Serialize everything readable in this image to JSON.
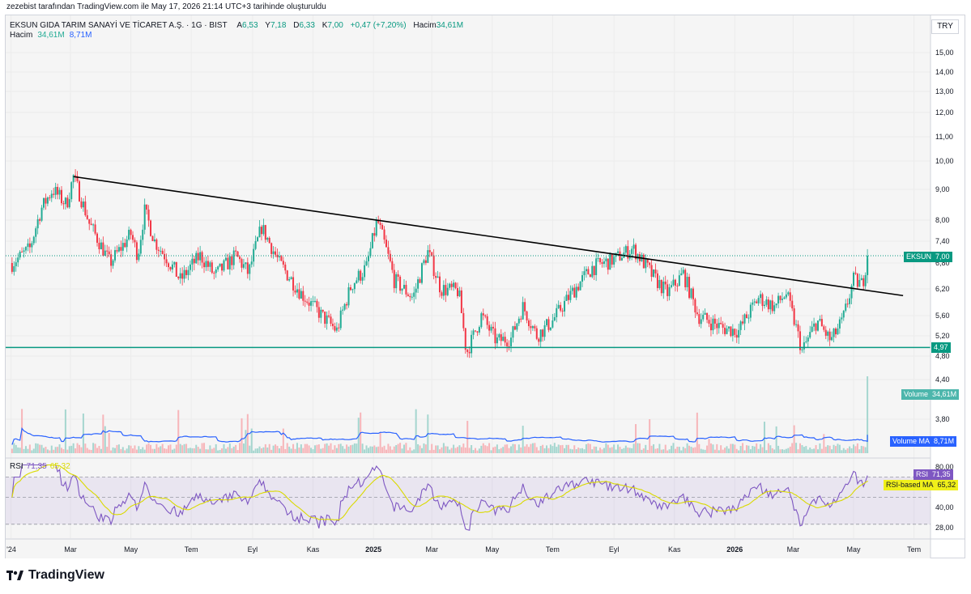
{
  "caption": "zezebist tarafından TradingView.com ile May 17, 2026 21:14 UTC+3 tarihinde oluşturuldu",
  "symbol_line": {
    "symbol": "EKSUN GIDA TARIM SANAYİ VE TİCARET A.Ş. · 1G · BIST",
    "open_label": "A",
    "open": "6,53",
    "high_label": "Y",
    "high": "7,18",
    "low_label": "D",
    "low": "6,33",
    "close_label": "K",
    "close": "7,00",
    "change": "+0,47 (+7,20%)",
    "volume_label": "Hacim",
    "volume": "34,61M"
  },
  "volume_legend": {
    "label": "Hacim",
    "value": "34,61M",
    "ma": "8,71M"
  },
  "rsi_legend": {
    "label": "RSI",
    "value": "71,35",
    "ma": "65,32"
  },
  "currency": "TRY",
  "tags": {
    "price": {
      "label": "EKSUN",
      "value": "7,00"
    },
    "support": "4,97",
    "volume": {
      "label": "Volume",
      "value": "34,61M"
    },
    "volume_ma": {
      "label": "Volume MA",
      "value": "8,71M"
    },
    "rsi": {
      "label": "RSI",
      "value": "71,35"
    },
    "rsi_ma": {
      "label": "RSI-based MA",
      "value": "65,32"
    }
  },
  "brand": "TradingView",
  "colors": {
    "up": "#22ab94",
    "down": "#f23645",
    "volume_up": "#a5d6cf",
    "volume_down": "#f7b5b9",
    "volume_ma": "#2962ff",
    "rsi": "#7e57c2",
    "rsi_ma": "#dada00",
    "support": "#089981",
    "trendline": "#000000"
  },
  "chart_data": {
    "type": "candlestick",
    "price_axis_ticks": [
      "15,00",
      "14,00",
      "13,00",
      "12,00",
      "11,00",
      "10,00",
      "9,00",
      "8,00",
      "7,40",
      "6,80",
      "6,20",
      "5,60",
      "5,20",
      "4,80",
      "4,40",
      "3,80"
    ],
    "price_axis_values": [
      15,
      14,
      13,
      12,
      11,
      10,
      9,
      8,
      7.4,
      6.8,
      6.2,
      5.6,
      5.2,
      4.8,
      4.4,
      3.8
    ],
    "rsi_axis_ticks": [
      "80,00",
      "40,00",
      "28,00"
    ],
    "time_axis_ticks": [
      "'24",
      "Mar",
      "May",
      "Tem",
      "Eyl",
      "Kas",
      "2025",
      "Mar",
      "May",
      "Tem",
      "Eyl",
      "Kas",
      "2026",
      "Mar",
      "May",
      "Tem"
    ],
    "time_axis_values": [
      "2024-01",
      "2024-03",
      "2024-05",
      "2024-07",
      "2024-09",
      "2024-11",
      "2025-01",
      "2025-03",
      "2025-05",
      "2025-07",
      "2025-09",
      "2025-11",
      "2026-01",
      "2026-03",
      "2026-05",
      "2026-07"
    ],
    "price_anchors": [
      [
        "2024-01-02",
        6.8
      ],
      [
        "2024-01-20",
        7.2
      ],
      [
        "2024-02-01",
        8.4
      ],
      [
        "2024-02-12",
        9.0
      ],
      [
        "2024-02-26",
        8.5
      ],
      [
        "2024-03-04",
        9.45
      ],
      [
        "2024-03-20",
        7.9
      ],
      [
        "2024-04-10",
        6.8
      ],
      [
        "2024-05-01",
        7.6
      ],
      [
        "2024-05-08",
        7.0
      ],
      [
        "2024-05-15",
        8.3
      ],
      [
        "2024-05-25",
        7.4
      ],
      [
        "2024-06-20",
        6.4
      ],
      [
        "2024-07-10",
        7.0
      ],
      [
        "2024-07-25",
        6.5
      ],
      [
        "2024-08-15",
        7.0
      ],
      [
        "2024-08-28",
        6.55
      ],
      [
        "2024-09-10",
        7.8
      ],
      [
        "2024-09-28",
        6.8
      ],
      [
        "2024-10-20",
        6.1
      ],
      [
        "2024-11-10",
        5.6
      ],
      [
        "2024-11-25",
        5.3
      ],
      [
        "2024-12-10",
        6.3
      ],
      [
        "2024-12-25",
        6.7
      ],
      [
        "2025-01-05",
        8.0
      ],
      [
        "2025-01-22",
        6.4
      ],
      [
        "2025-02-10",
        6.0
      ],
      [
        "2025-02-25",
        7.1
      ],
      [
        "2025-03-10",
        6.2
      ],
      [
        "2025-03-28",
        6.15
      ],
      [
        "2025-04-05",
        4.85
      ],
      [
        "2025-04-20",
        5.6
      ],
      [
        "2025-05-05",
        5.1
      ],
      [
        "2025-05-20",
        5.15
      ],
      [
        "2025-06-01",
        5.8
      ],
      [
        "2025-06-15",
        5.2
      ],
      [
        "2025-07-01",
        5.5
      ],
      [
        "2025-07-20",
        6.1
      ],
      [
        "2025-08-10",
        6.7
      ],
      [
        "2025-09-01",
        6.9
      ],
      [
        "2025-09-20",
        7.2
      ],
      [
        "2025-10-10",
        6.5
      ],
      [
        "2025-10-25",
        6.1
      ],
      [
        "2025-11-10",
        6.55
      ],
      [
        "2025-11-25",
        5.6
      ],
      [
        "2025-12-20",
        5.35
      ],
      [
        "2026-01-05",
        5.3
      ],
      [
        "2026-01-25",
        6.0
      ],
      [
        "2026-02-10",
        5.8
      ],
      [
        "2026-02-22",
        6.1
      ],
      [
        "2026-03-10",
        4.9
      ],
      [
        "2026-03-25",
        5.5
      ],
      [
        "2026-04-08",
        5.1
      ],
      [
        "2026-04-20",
        5.5
      ],
      [
        "2026-05-01",
        6.4
      ],
      [
        "2026-05-10",
        6.3
      ],
      [
        "2026-05-15",
        7.0
      ]
    ],
    "last_candle": {
      "date": "2026-05-15",
      "open": 6.53,
      "high": 7.18,
      "low": 6.33,
      "close": 7.0
    },
    "trendline": [
      [
        "2024-03-04",
        9.45
      ],
      [
        "2026-06-20",
        6.05
      ]
    ],
    "support_level": 4.97,
    "last_price": 7.0,
    "volume_last": 34.61,
    "volume_ma_last": 8.71,
    "rsi_last": 71.35,
    "rsi_ma_last": 65.32
  }
}
